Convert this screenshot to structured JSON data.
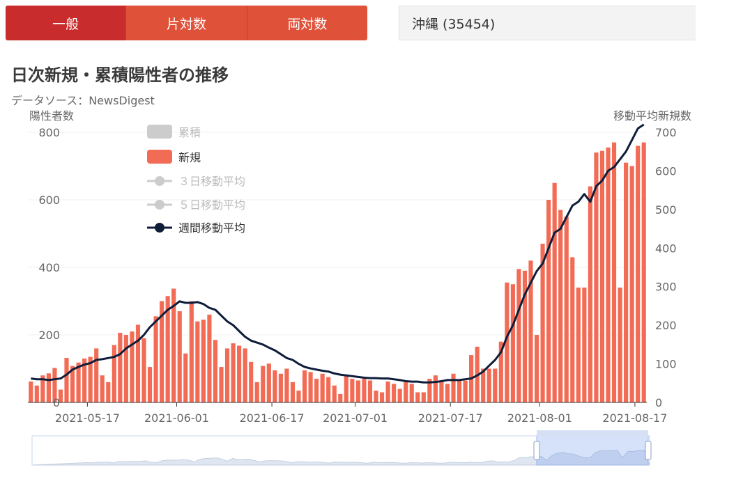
{
  "tabs": [
    {
      "label": "一般",
      "active": true
    },
    {
      "label": "片対数",
      "active": false
    },
    {
      "label": "両対数",
      "active": false
    }
  ],
  "prefecture_select": "沖縄 (35454)",
  "chart_title": "日次新規・累積陽性者の推移",
  "source": "データソース：NewsDigest",
  "colors": {
    "bar": "#f26b55",
    "line": "#0d1d3a",
    "accent": "#1e9be0",
    "tab_active": "#c92c2c",
    "tab": "#e0513a",
    "legend_off": "#cccccc"
  },
  "chart_data": {
    "type": "bar",
    "title": "日次新規・累積陽性者の推移",
    "ylabel_left": "陽性者数",
    "ylabel_right": "移動平均新規数",
    "left_axis": {
      "ylim": [
        0,
        800
      ],
      "ticks": [
        "0",
        "200",
        "400",
        "600",
        "800"
      ]
    },
    "right_axis": {
      "ylim": [
        0,
        700
      ],
      "ticks": [
        "0",
        "100",
        "200",
        "300",
        "400",
        "500",
        "600",
        "700"
      ]
    },
    "x_ticks": [
      "2021-05-17",
      "2021-06-01",
      "2021-06-17",
      "2021-07-01",
      "2021-07-17",
      "2021-08-01",
      "2021-08-17"
    ],
    "x_tick_days": [
      10,
      25,
      41,
      55,
      71,
      86,
      102
    ],
    "x_range_days": [
      0,
      104
    ],
    "legend": [
      {
        "label": "累積",
        "type": "bar",
        "enabled": false
      },
      {
        "label": "新規",
        "type": "bar",
        "enabled": true
      },
      {
        "label": "３日移動平均",
        "type": "line",
        "enabled": false
      },
      {
        "label": "５日移動平均",
        "type": "line",
        "enabled": false
      },
      {
        "label": "週間移動平均",
        "type": "line",
        "enabled": true
      }
    ],
    "series": [
      {
        "name": "新規",
        "axis": "left",
        "values": [
          62,
          50,
          80,
          86,
          102,
          38,
          132,
          108,
          118,
          130,
          135,
          160,
          80,
          60,
          170,
          206,
          200,
          210,
          230,
          190,
          105,
          255,
          300,
          315,
          337,
          270,
          145,
          300,
          240,
          245,
          260,
          185,
          105,
          160,
          175,
          168,
          160,
          120,
          60,
          108,
          115,
          95,
          85,
          100,
          60,
          35,
          95,
          90,
          70,
          85,
          75,
          50,
          25,
          80,
          70,
          65,
          70,
          65,
          35,
          30,
          62,
          55,
          40,
          60,
          55,
          30,
          30,
          70,
          80,
          65,
          55,
          85,
          65,
          65,
          140,
          165,
          100,
          100,
          100,
          180,
          355,
          350,
          395,
          390,
          420,
          200,
          470,
          600,
          650,
          570,
          550,
          430,
          340,
          340,
          640,
          740,
          745,
          755,
          770,
          340,
          710,
          700,
          760,
          770
        ]
      },
      {
        "name": "週間移動平均",
        "axis": "right",
        "values": [
          62,
          60,
          60,
          58,
          60,
          62,
          72,
          85,
          92,
          98,
          102,
          110,
          112,
          115,
          118,
          125,
          140,
          150,
          160,
          175,
          195,
          210,
          225,
          240,
          250,
          262,
          258,
          258,
          260,
          255,
          245,
          240,
          225,
          210,
          200,
          185,
          170,
          160,
          155,
          150,
          142,
          135,
          125,
          115,
          110,
          100,
          92,
          88,
          85,
          82,
          80,
          75,
          72,
          70,
          68,
          66,
          64,
          63,
          63,
          62,
          62,
          60,
          58,
          55,
          54,
          54,
          52,
          52,
          53,
          55,
          58,
          58,
          58,
          60,
          62,
          70,
          80,
          95,
          110,
          130,
          170,
          200,
          240,
          280,
          310,
          340,
          360,
          400,
          440,
          450,
          480,
          510,
          520,
          540,
          520,
          560,
          575,
          600,
          610,
          630,
          650,
          680,
          710,
          720
        ]
      }
    ]
  }
}
